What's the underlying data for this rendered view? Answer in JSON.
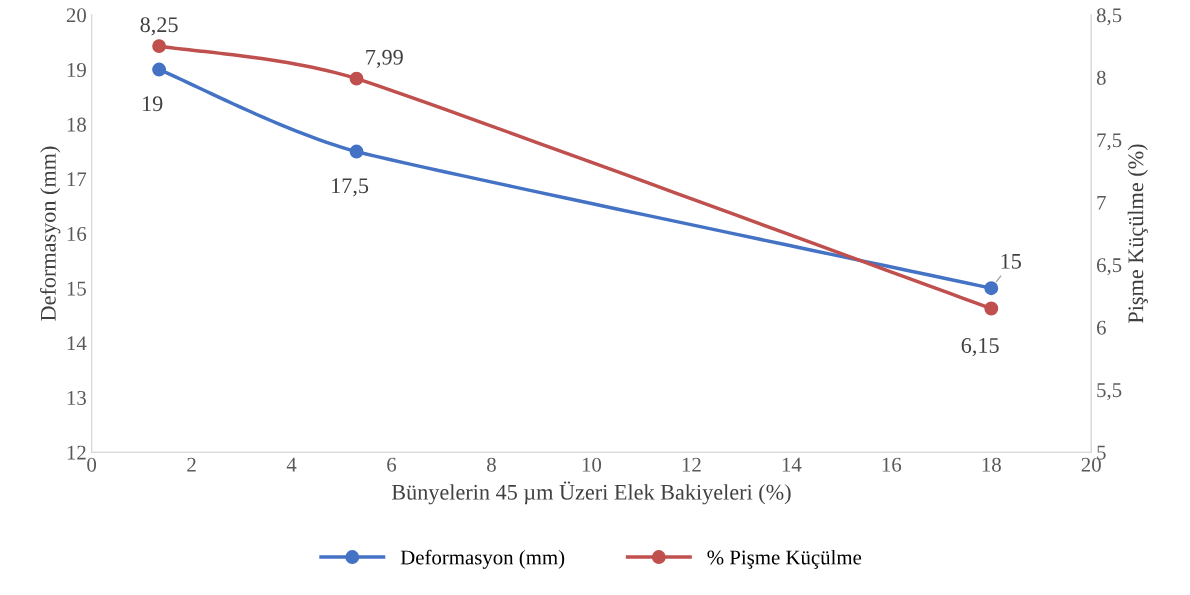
{
  "chart_data": {
    "type": "line",
    "xlabel": "Bünyelerin 45 µm Üzeri Elek Bakiyeleri (%)",
    "ylabel": "Deformasyon (mm)",
    "y2label": "Pişme Küçülme (%)",
    "x": [
      1.35,
      5.3,
      18.0
    ],
    "series": [
      {
        "name": "Deformasyon (mm)",
        "color": "#4472c4",
        "values": [
          19,
          17.5,
          15
        ],
        "value_labels": [
          "19",
          "17,5",
          "15"
        ]
      },
      {
        "name": "% Pişme Küçülme",
        "color": "#c0504d",
        "values": [
          8.25,
          7.99,
          6.15
        ],
        "value_labels": [
          "8,25",
          "7,99",
          "6,15"
        ],
        "axis": "y2"
      }
    ],
    "xlim": [
      0,
      20
    ],
    "xticks": [
      0,
      2,
      4,
      6,
      8,
      10,
      12,
      14,
      16,
      18,
      20
    ],
    "ylim": [
      12,
      20
    ],
    "yticks": [
      12,
      13,
      14,
      15,
      16,
      17,
      18,
      19,
      20
    ],
    "y2lim": [
      5,
      8.5
    ],
    "y2ticks": [
      5,
      {
        "value": 5.5,
        "label": "5,5"
      },
      6,
      {
        "value": 6.5,
        "label": "6,5"
      },
      7,
      {
        "value": 7.5,
        "label": "7,5"
      },
      8,
      {
        "value": 8.5,
        "label": "8,5"
      }
    ],
    "marker": "circle",
    "line_style": "solid",
    "legend": "bottom",
    "grid": false
  }
}
